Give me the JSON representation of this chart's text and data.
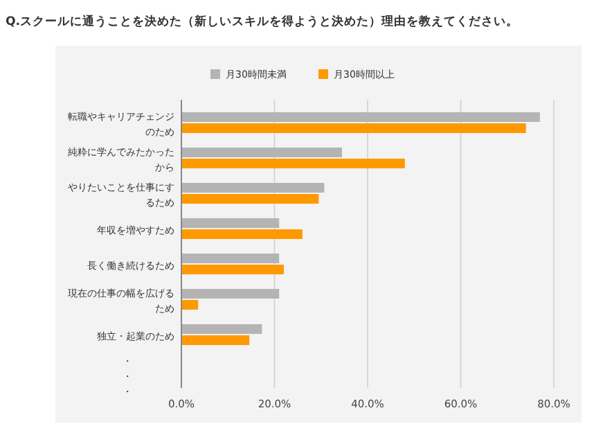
{
  "chart_data": {
    "type": "bar",
    "orientation": "horizontal",
    "title": "Q.スクールに通うことを決めた（新しいスキルを得ようと決めた）理由を教えてください。",
    "categories": [
      "転職やキャリアチェンジのため",
      "純粋に学んでみたかったから",
      "やりたいことを仕事にするため",
      "年収を増やすため",
      "長く働き続けるため",
      "現在の仕事の幅を広げるため",
      "独立・起業のため"
    ],
    "series": [
      {
        "name": "月30時間未満",
        "color": "#b4b4b4",
        "values": [
          77,
          34.5,
          30.7,
          21,
          21,
          21,
          17.3
        ]
      },
      {
        "name": "月30時間以上",
        "color": "#ff9900",
        "values": [
          74,
          48,
          29.5,
          26,
          22,
          3.6,
          14.6
        ]
      }
    ],
    "xlim": [
      0,
      80
    ],
    "xticks": [
      {
        "value": 0,
        "label": "0.0%"
      },
      {
        "value": 20,
        "label": "20.0%"
      },
      {
        "value": 40,
        "label": "40.0%"
      },
      {
        "value": 60,
        "label": "60.0%"
      },
      {
        "value": 80,
        "label": "80.0%"
      }
    ],
    "grid": "x",
    "legend": "top",
    "annotations": [
      "・・・"
    ]
  }
}
